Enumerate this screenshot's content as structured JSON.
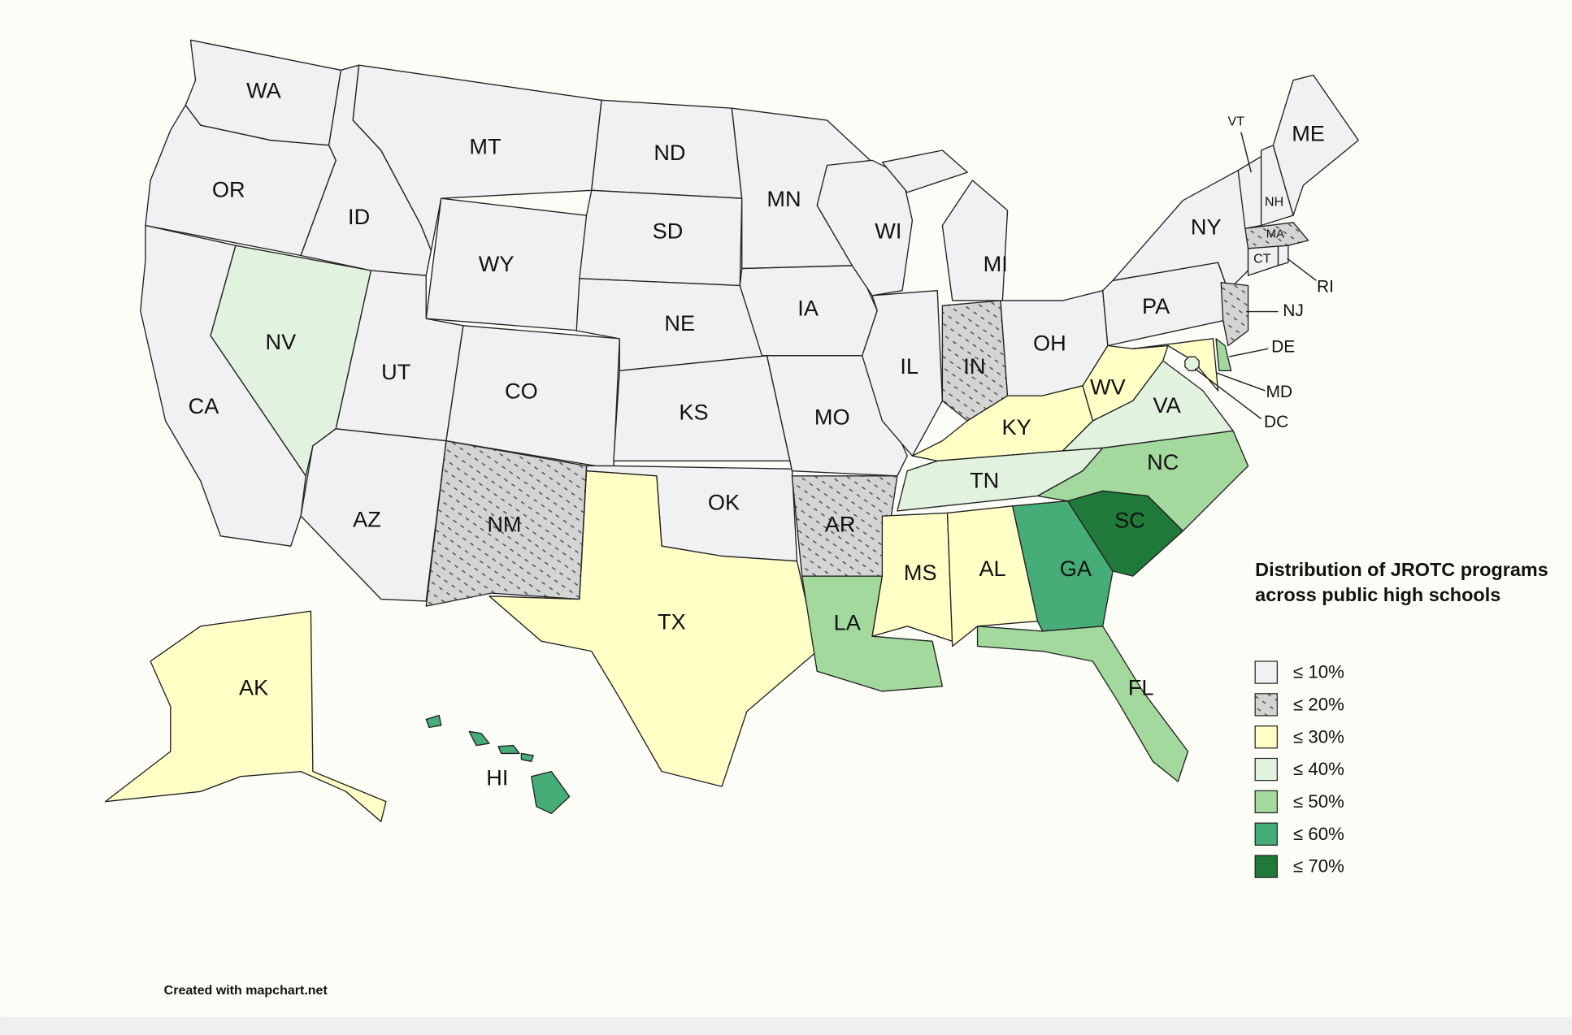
{
  "legend": {
    "title": "Distribution of JROTC programs across public high schools",
    "items": [
      {
        "label": "≤ 10%",
        "color": "#f1f1f3"
      },
      {
        "label": "≤ 20%",
        "color": "#d4d4d4",
        "pattern": "dots"
      },
      {
        "label": "≤ 30%",
        "color": "#ffffc6"
      },
      {
        "label": "≤ 40%",
        "color": "#e1f3de"
      },
      {
        "label": "≤ 50%",
        "color": "#a3d99d"
      },
      {
        "label": "≤ 60%",
        "color": "#46ad78"
      },
      {
        "label": "≤ 70%",
        "color": "#1f7a3a"
      }
    ]
  },
  "states": [
    {
      "label": "WA",
      "color": "#f1f1f3"
    },
    {
      "label": "OR",
      "color": "#f1f1f3"
    },
    {
      "label": "CA",
      "color": "#f1f1f3"
    },
    {
      "label": "ID",
      "color": "#f1f1f3"
    },
    {
      "label": "NV",
      "color": "#e1f3de"
    },
    {
      "label": "MT",
      "color": "#f1f1f3"
    },
    {
      "label": "WY",
      "color": "#f1f1f3"
    },
    {
      "label": "UT",
      "color": "#f1f1f3"
    },
    {
      "label": "AZ",
      "color": "#f1f1f3"
    },
    {
      "label": "CO",
      "color": "#f1f1f3"
    },
    {
      "label": "NM",
      "color": "#d4d4d4"
    },
    {
      "label": "ND",
      "color": "#f1f1f3"
    },
    {
      "label": "SD",
      "color": "#f1f1f3"
    },
    {
      "label": "NE",
      "color": "#f1f1f3"
    },
    {
      "label": "KS",
      "color": "#f1f1f3"
    },
    {
      "label": "OK",
      "color": "#f1f1f3"
    },
    {
      "label": "TX",
      "color": "#ffffc6"
    },
    {
      "label": "MN",
      "color": "#f1f1f3"
    },
    {
      "label": "IA",
      "color": "#f1f1f3"
    },
    {
      "label": "MO",
      "color": "#f1f1f3"
    },
    {
      "label": "AR",
      "color": "#d4d4d4"
    },
    {
      "label": "LA",
      "color": "#a3d99d"
    },
    {
      "label": "WI",
      "color": "#f1f1f3"
    },
    {
      "label": "IL",
      "color": "#f1f1f3"
    },
    {
      "label": "MI",
      "color": "#f1f1f3"
    },
    {
      "label": "IN",
      "color": "#d4d4d4"
    },
    {
      "label": "OH",
      "color": "#f1f1f3"
    },
    {
      "label": "KY",
      "color": "#ffffc6"
    },
    {
      "label": "TN",
      "color": "#e1f3de"
    },
    {
      "label": "MS",
      "color": "#ffffc6"
    },
    {
      "label": "AL",
      "color": "#ffffc6"
    },
    {
      "label": "GA",
      "color": "#46ad78"
    },
    {
      "label": "FL",
      "color": "#a3d99d"
    },
    {
      "label": "SC",
      "color": "#1f7a3a"
    },
    {
      "label": "NC",
      "color": "#a3d99d"
    },
    {
      "label": "VA",
      "color": "#e1f3de"
    },
    {
      "label": "WV",
      "color": "#ffffc6"
    },
    {
      "label": "PA",
      "color": "#f1f1f3"
    },
    {
      "label": "NY",
      "color": "#f1f1f3"
    },
    {
      "label": "MD",
      "color": "#ffffc6"
    },
    {
      "label": "DE",
      "color": "#a3d99d"
    },
    {
      "label": "NJ",
      "color": "#d4d4d4"
    },
    {
      "label": "CT",
      "color": "#f1f1f3"
    },
    {
      "label": "RI",
      "color": "#f1f1f3"
    },
    {
      "label": "MA",
      "color": "#d4d4d4"
    },
    {
      "label": "VT",
      "color": "#f1f1f3"
    },
    {
      "label": "NH",
      "color": "#f1f1f3"
    },
    {
      "label": "ME",
      "color": "#f1f1f3"
    },
    {
      "label": "DC",
      "color": "#e1f3de"
    },
    {
      "label": "AK",
      "color": "#ffffc6"
    },
    {
      "label": "HI",
      "color": "#46ad78"
    }
  ],
  "credit": "Created with mapchart.net"
}
